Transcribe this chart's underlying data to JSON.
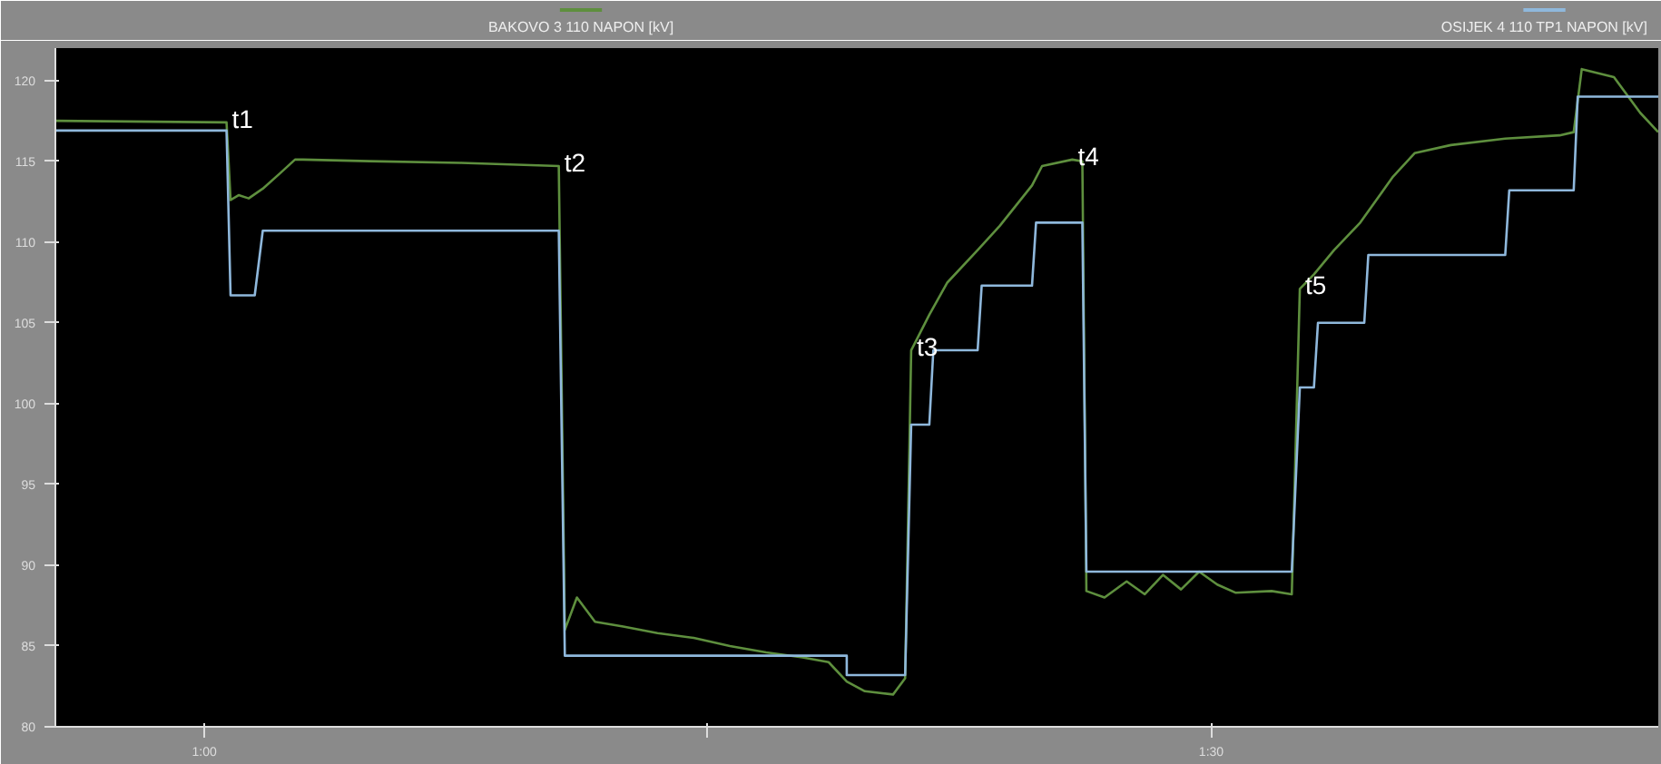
{
  "chart_data": {
    "type": "line",
    "xlim": [
      0.926,
      1.722
    ],
    "ylim": [
      80,
      122
    ],
    "xticks": [
      {
        "value": 1.0,
        "label": "1:00"
      },
      {
        "value": 1.25,
        "label": null
      },
      {
        "value": 1.5,
        "label": "1:30"
      }
    ],
    "yticks": [
      80,
      85,
      90,
      95,
      100,
      105,
      110,
      115,
      120
    ],
    "grid": false,
    "legend": "top",
    "marker": "none",
    "line_style": "solid",
    "series": [
      {
        "name": "BAKOVO 3 110 NAPON [kV]",
        "color": "#5e8f3e",
        "x": [
          0.926,
          1.011,
          1.013,
          1.017,
          1.022,
          1.029,
          1.038,
          1.045,
          1.049,
          1.082,
          1.127,
          1.176,
          1.179,
          1.185,
          1.194,
          1.208,
          1.225,
          1.243,
          1.261,
          1.279,
          1.297,
          1.31,
          1.319,
          1.328,
          1.342,
          1.348,
          1.351,
          1.36,
          1.369,
          1.384,
          1.395,
          1.411,
          1.416,
          1.431,
          1.436,
          1.438,
          1.447,
          1.458,
          1.467,
          1.476,
          1.485,
          1.494,
          1.503,
          1.512,
          1.53,
          1.54,
          1.544,
          1.551,
          1.561,
          1.574,
          1.59,
          1.601,
          1.619,
          1.646,
          1.673,
          1.68,
          1.684,
          1.7,
          1.713,
          1.722
        ],
        "values": [
          117.5,
          117.4,
          112.6,
          112.9,
          112.7,
          113.3,
          114.3,
          115.1,
          115.1,
          115.0,
          114.9,
          114.7,
          86.0,
          88.0,
          86.5,
          86.2,
          85.8,
          85.5,
          85.0,
          84.6,
          84.3,
          84.0,
          82.8,
          82.2,
          82.0,
          83.0,
          103.3,
          105.5,
          107.5,
          109.5,
          111.0,
          113.5,
          114.7,
          115.1,
          115.0,
          88.4,
          88.0,
          89.0,
          88.2,
          89.4,
          88.5,
          89.6,
          88.8,
          88.3,
          88.4,
          88.2,
          107.1,
          108.0,
          109.5,
          111.2,
          114.0,
          115.5,
          116.0,
          116.4,
          116.6,
          116.8,
          120.7,
          120.2,
          118.0,
          116.8
        ]
      },
      {
        "name": "OSIJEK 4 110 TP1 NAPON [kV]",
        "color": "#8fb8dc",
        "x": [
          0.926,
          1.011,
          1.013,
          1.025,
          1.029,
          1.176,
          1.179,
          1.319,
          1.319,
          1.348,
          1.351,
          1.36,
          1.362,
          1.384,
          1.386,
          1.411,
          1.413,
          1.436,
          1.438,
          1.54,
          1.544,
          1.551,
          1.553,
          1.576,
          1.578,
          1.646,
          1.648,
          1.68,
          1.682,
          1.722
        ],
        "values": [
          116.9,
          116.9,
          106.7,
          106.7,
          110.7,
          110.7,
          84.4,
          84.4,
          83.2,
          83.2,
          98.7,
          98.7,
          103.3,
          103.3,
          107.3,
          107.3,
          111.2,
          111.2,
          89.6,
          89.6,
          101.0,
          101.0,
          105.0,
          105.0,
          109.2,
          109.2,
          113.2,
          113.2,
          119.0,
          119.0
        ]
      }
    ],
    "annotations": [
      {
        "text": "t1",
        "x": 1.011,
        "y": 117.4
      },
      {
        "text": "t2",
        "x": 1.176,
        "y": 114.7
      },
      {
        "text": "t3",
        "x": 1.351,
        "y": 103.3
      },
      {
        "text": "t4",
        "x": 1.431,
        "y": 115.1
      },
      {
        "text": "t5",
        "x": 1.544,
        "y": 107.1
      }
    ]
  }
}
